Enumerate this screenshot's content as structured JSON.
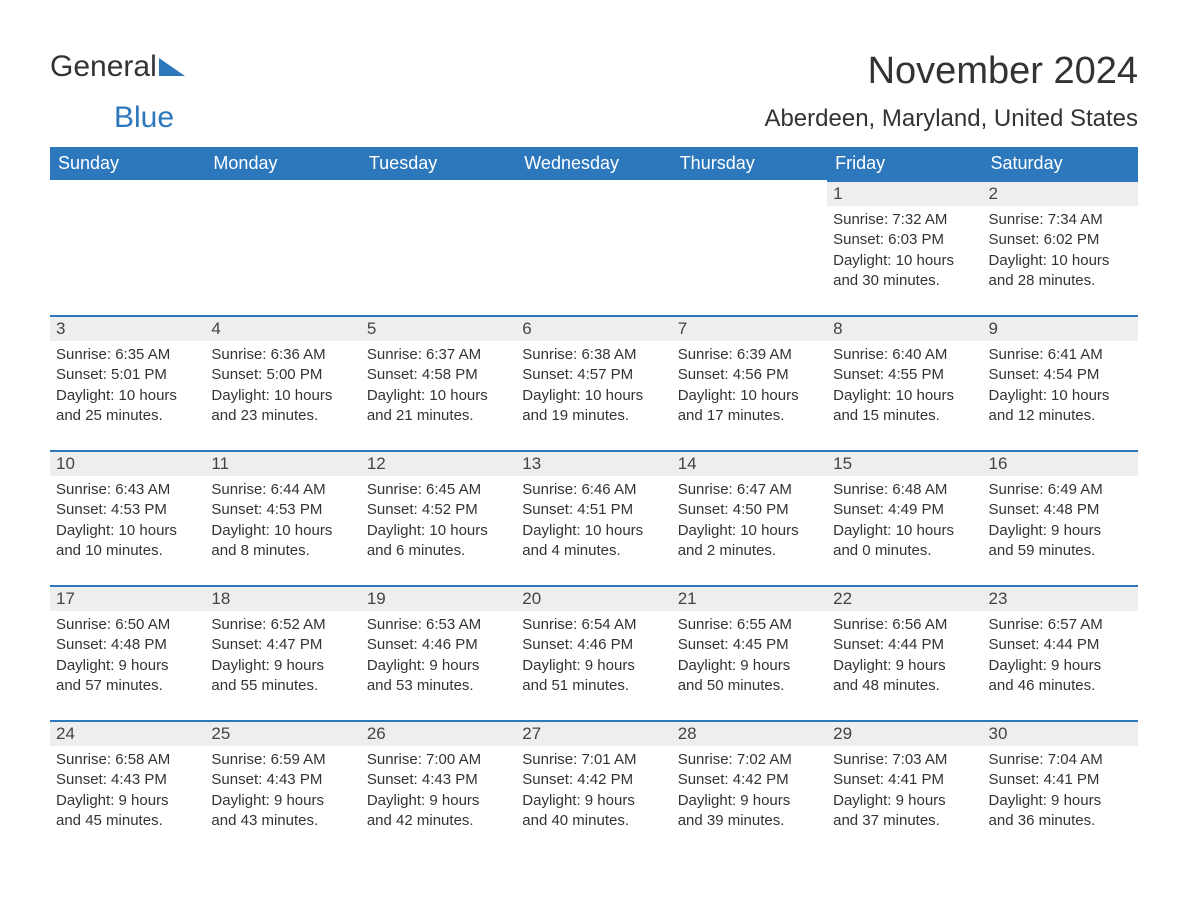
{
  "logo": {
    "text_general": "General",
    "text_blue": "Blue"
  },
  "header": {
    "month_title": "November 2024",
    "location": "Aberdeen, Maryland, United States"
  },
  "styling": {
    "header_bg": "#2d78bd",
    "header_text": "#ffffff",
    "day_number_bg": "#eeeeee",
    "day_number_border_top": "#2d78bd",
    "body_text": "#333333",
    "month_title_fontsize": 38,
    "location_fontsize": 24,
    "th_fontsize": 18,
    "day_number_fontsize": 17,
    "detail_fontsize": 15
  },
  "calendar": {
    "columns": [
      "Sunday",
      "Monday",
      "Tuesday",
      "Wednesday",
      "Thursday",
      "Friday",
      "Saturday"
    ],
    "weeks": [
      [
        null,
        null,
        null,
        null,
        null,
        {
          "day": "1",
          "sunrise": "Sunrise: 7:32 AM",
          "sunset": "Sunset: 6:03 PM",
          "daylight1": "Daylight: 10 hours",
          "daylight2": "and 30 minutes."
        },
        {
          "day": "2",
          "sunrise": "Sunrise: 7:34 AM",
          "sunset": "Sunset: 6:02 PM",
          "daylight1": "Daylight: 10 hours",
          "daylight2": "and 28 minutes."
        }
      ],
      [
        {
          "day": "3",
          "sunrise": "Sunrise: 6:35 AM",
          "sunset": "Sunset: 5:01 PM",
          "daylight1": "Daylight: 10 hours",
          "daylight2": "and 25 minutes."
        },
        {
          "day": "4",
          "sunrise": "Sunrise: 6:36 AM",
          "sunset": "Sunset: 5:00 PM",
          "daylight1": "Daylight: 10 hours",
          "daylight2": "and 23 minutes."
        },
        {
          "day": "5",
          "sunrise": "Sunrise: 6:37 AM",
          "sunset": "Sunset: 4:58 PM",
          "daylight1": "Daylight: 10 hours",
          "daylight2": "and 21 minutes."
        },
        {
          "day": "6",
          "sunrise": "Sunrise: 6:38 AM",
          "sunset": "Sunset: 4:57 PM",
          "daylight1": "Daylight: 10 hours",
          "daylight2": "and 19 minutes."
        },
        {
          "day": "7",
          "sunrise": "Sunrise: 6:39 AM",
          "sunset": "Sunset: 4:56 PM",
          "daylight1": "Daylight: 10 hours",
          "daylight2": "and 17 minutes."
        },
        {
          "day": "8",
          "sunrise": "Sunrise: 6:40 AM",
          "sunset": "Sunset: 4:55 PM",
          "daylight1": "Daylight: 10 hours",
          "daylight2": "and 15 minutes."
        },
        {
          "day": "9",
          "sunrise": "Sunrise: 6:41 AM",
          "sunset": "Sunset: 4:54 PM",
          "daylight1": "Daylight: 10 hours",
          "daylight2": "and 12 minutes."
        }
      ],
      [
        {
          "day": "10",
          "sunrise": "Sunrise: 6:43 AM",
          "sunset": "Sunset: 4:53 PM",
          "daylight1": "Daylight: 10 hours",
          "daylight2": "and 10 minutes."
        },
        {
          "day": "11",
          "sunrise": "Sunrise: 6:44 AM",
          "sunset": "Sunset: 4:53 PM",
          "daylight1": "Daylight: 10 hours",
          "daylight2": "and 8 minutes."
        },
        {
          "day": "12",
          "sunrise": "Sunrise: 6:45 AM",
          "sunset": "Sunset: 4:52 PM",
          "daylight1": "Daylight: 10 hours",
          "daylight2": "and 6 minutes."
        },
        {
          "day": "13",
          "sunrise": "Sunrise: 6:46 AM",
          "sunset": "Sunset: 4:51 PM",
          "daylight1": "Daylight: 10 hours",
          "daylight2": "and 4 minutes."
        },
        {
          "day": "14",
          "sunrise": "Sunrise: 6:47 AM",
          "sunset": "Sunset: 4:50 PM",
          "daylight1": "Daylight: 10 hours",
          "daylight2": "and 2 minutes."
        },
        {
          "day": "15",
          "sunrise": "Sunrise: 6:48 AM",
          "sunset": "Sunset: 4:49 PM",
          "daylight1": "Daylight: 10 hours",
          "daylight2": "and 0 minutes."
        },
        {
          "day": "16",
          "sunrise": "Sunrise: 6:49 AM",
          "sunset": "Sunset: 4:48 PM",
          "daylight1": "Daylight: 9 hours",
          "daylight2": "and 59 minutes."
        }
      ],
      [
        {
          "day": "17",
          "sunrise": "Sunrise: 6:50 AM",
          "sunset": "Sunset: 4:48 PM",
          "daylight1": "Daylight: 9 hours",
          "daylight2": "and 57 minutes."
        },
        {
          "day": "18",
          "sunrise": "Sunrise: 6:52 AM",
          "sunset": "Sunset: 4:47 PM",
          "daylight1": "Daylight: 9 hours",
          "daylight2": "and 55 minutes."
        },
        {
          "day": "19",
          "sunrise": "Sunrise: 6:53 AM",
          "sunset": "Sunset: 4:46 PM",
          "daylight1": "Daylight: 9 hours",
          "daylight2": "and 53 minutes."
        },
        {
          "day": "20",
          "sunrise": "Sunrise: 6:54 AM",
          "sunset": "Sunset: 4:46 PM",
          "daylight1": "Daylight: 9 hours",
          "daylight2": "and 51 minutes."
        },
        {
          "day": "21",
          "sunrise": "Sunrise: 6:55 AM",
          "sunset": "Sunset: 4:45 PM",
          "daylight1": "Daylight: 9 hours",
          "daylight2": "and 50 minutes."
        },
        {
          "day": "22",
          "sunrise": "Sunrise: 6:56 AM",
          "sunset": "Sunset: 4:44 PM",
          "daylight1": "Daylight: 9 hours",
          "daylight2": "and 48 minutes."
        },
        {
          "day": "23",
          "sunrise": "Sunrise: 6:57 AM",
          "sunset": "Sunset: 4:44 PM",
          "daylight1": "Daylight: 9 hours",
          "daylight2": "and 46 minutes."
        }
      ],
      [
        {
          "day": "24",
          "sunrise": "Sunrise: 6:58 AM",
          "sunset": "Sunset: 4:43 PM",
          "daylight1": "Daylight: 9 hours",
          "daylight2": "and 45 minutes."
        },
        {
          "day": "25",
          "sunrise": "Sunrise: 6:59 AM",
          "sunset": "Sunset: 4:43 PM",
          "daylight1": "Daylight: 9 hours",
          "daylight2": "and 43 minutes."
        },
        {
          "day": "26",
          "sunrise": "Sunrise: 7:00 AM",
          "sunset": "Sunset: 4:43 PM",
          "daylight1": "Daylight: 9 hours",
          "daylight2": "and 42 minutes."
        },
        {
          "day": "27",
          "sunrise": "Sunrise: 7:01 AM",
          "sunset": "Sunset: 4:42 PM",
          "daylight1": "Daylight: 9 hours",
          "daylight2": "and 40 minutes."
        },
        {
          "day": "28",
          "sunrise": "Sunrise: 7:02 AM",
          "sunset": "Sunset: 4:42 PM",
          "daylight1": "Daylight: 9 hours",
          "daylight2": "and 39 minutes."
        },
        {
          "day": "29",
          "sunrise": "Sunrise: 7:03 AM",
          "sunset": "Sunset: 4:41 PM",
          "daylight1": "Daylight: 9 hours",
          "daylight2": "and 37 minutes."
        },
        {
          "day": "30",
          "sunrise": "Sunrise: 7:04 AM",
          "sunset": "Sunset: 4:41 PM",
          "daylight1": "Daylight: 9 hours",
          "daylight2": "and 36 minutes."
        }
      ]
    ]
  }
}
